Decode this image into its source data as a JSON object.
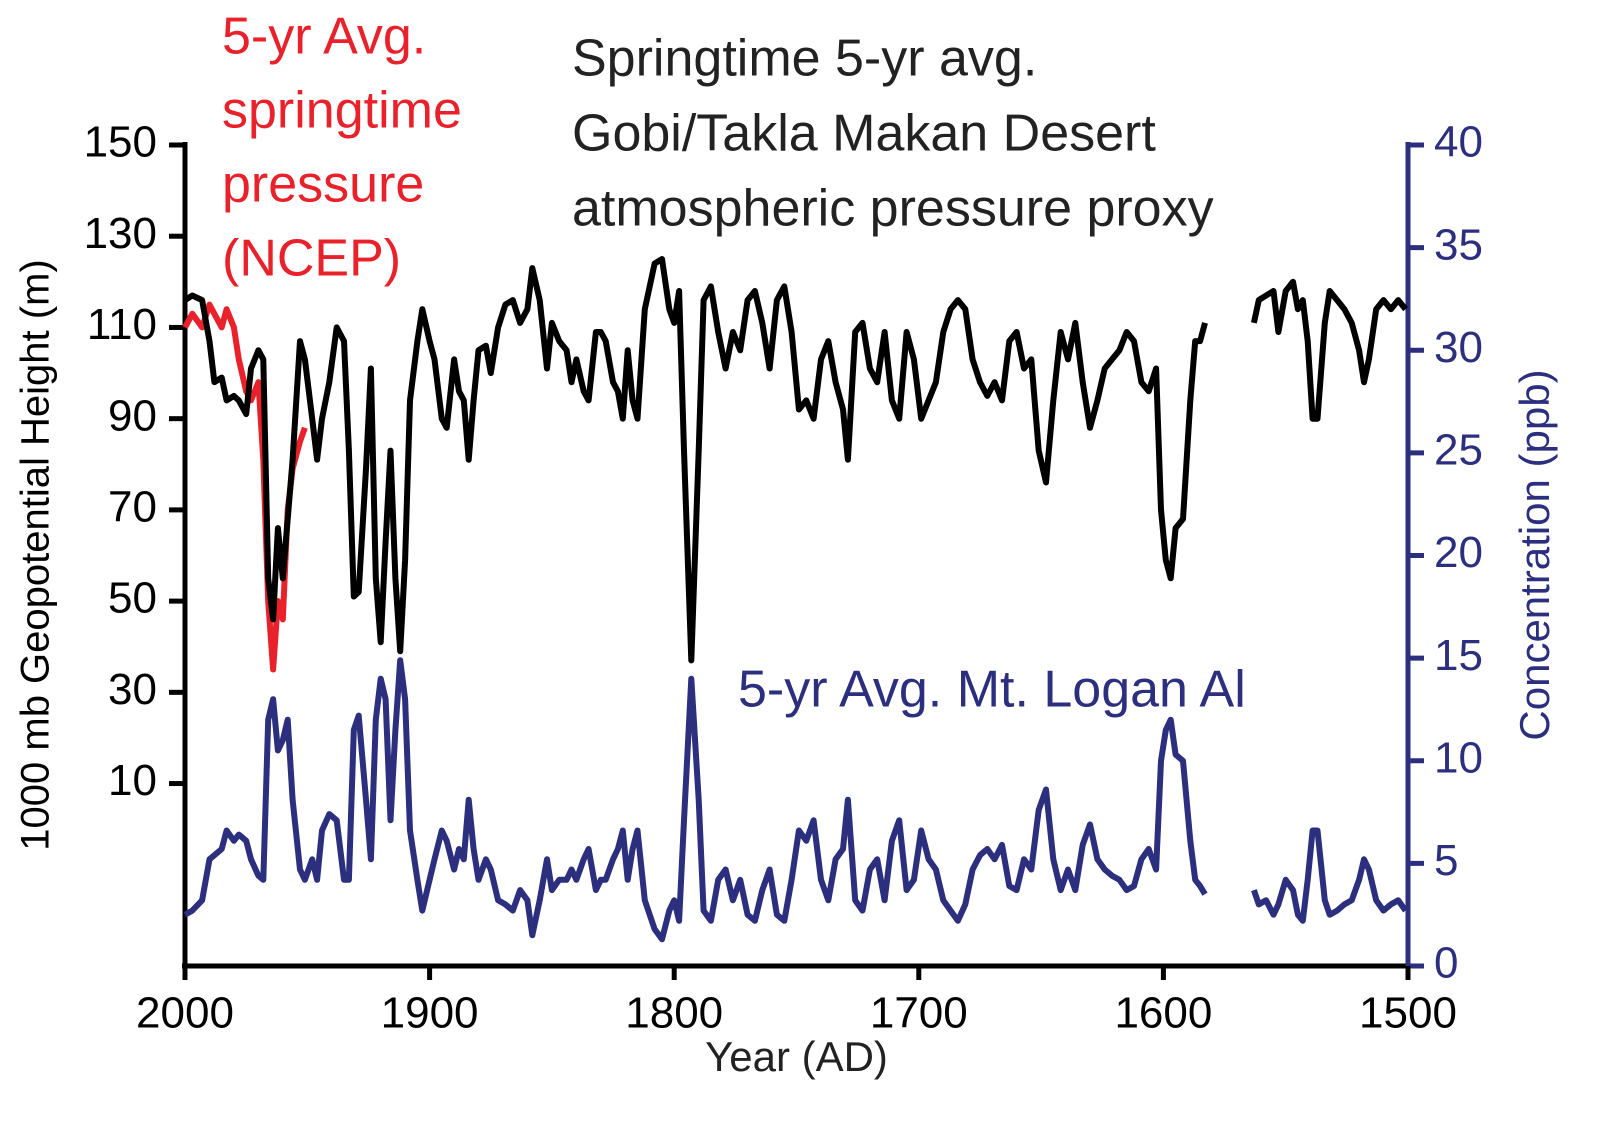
{
  "chart_data": {
    "type": "line",
    "title": [
      "Springtime 5-yr avg.",
      "Gobi/Takla Makan Desert",
      "atmospheric pressure proxy"
    ],
    "xlabel": "Year (AD)",
    "ylabel": "1000 mb Geopotential Height (m)",
    "y2label": "Concentration (ppb)",
    "xlim": [
      2000,
      1500
    ],
    "xticks": [
      2000,
      1900,
      1800,
      1700,
      1600,
      1500
    ],
    "ylim": [
      -30,
      150
    ],
    "yticks": [
      150,
      130,
      110,
      90,
      70,
      50,
      30,
      10
    ],
    "y2lim": [
      0,
      40
    ],
    "y2ticks": [
      40,
      35,
      30,
      25,
      20,
      15,
      10,
      5,
      0
    ],
    "y2color": "#2b2f7e",
    "x": [
      2000,
      1997,
      1993,
      1990,
      1988,
      1985,
      1983,
      1980,
      1978,
      1975,
      1973,
      1970,
      1968,
      1966,
      1964,
      1962,
      1960,
      1958,
      1956,
      1953,
      1951,
      1948,
      1946,
      1944,
      1941,
      1938,
      1935,
      1933,
      1931,
      1929,
      1926,
      1924,
      1922,
      1920,
      1918,
      1916,
      1914,
      1912,
      1910,
      1908,
      1905,
      1903,
      1900,
      1898,
      1895,
      1893,
      1890,
      1888,
      1886,
      1884,
      1882,
      1880,
      1877,
      1875,
      1872,
      1869,
      1866,
      1863,
      1860,
      1858,
      1855,
      1852,
      1850,
      1847,
      1844,
      1842,
      1840,
      1837,
      1835,
      1832,
      1830,
      1828,
      1825,
      1823,
      1821,
      1819,
      1817,
      1815,
      1812,
      1808,
      1805,
      1802,
      1800,
      1798,
      1796,
      1793,
      1790,
      1788,
      1785,
      1782,
      1779,
      1776,
      1773,
      1770,
      1767,
      1764,
      1761,
      1758,
      1755,
      1752,
      1749,
      1746,
      1743,
      1740,
      1737,
      1734,
      1731,
      1729,
      1726,
      1723,
      1720,
      1717,
      1714,
      1711,
      1708,
      1705,
      1702,
      1699,
      1696,
      1693,
      1690,
      1687,
      1684,
      1681,
      1678,
      1675,
      1672,
      1669,
      1666,
      1663,
      1660,
      1657,
      1654,
      1651,
      1648,
      1645,
      1642,
      1639,
      1636,
      1633,
      1630,
      1627,
      1624,
      1621,
      1618,
      1615,
      1612,
      1609,
      1606,
      1603,
      1601,
      1599,
      1597,
      1595,
      1592,
      1589,
      1587,
      1585,
      1583,
      1573,
      1563,
      1561,
      1558,
      1555,
      1553,
      1550,
      1547,
      1545,
      1543,
      1541,
      1539,
      1537,
      1534,
      1532,
      1529,
      1526,
      1523,
      1520,
      1518,
      1516,
      1513,
      1510,
      1507,
      1504,
      1501
    ],
    "series": [
      {
        "color": "#000000",
        "values": [
          116,
          117,
          116,
          107,
          98,
          99,
          94,
          95,
          94,
          91,
          101,
          105,
          103,
          55,
          46,
          66,
          55,
          68,
          81,
          107,
          103,
          90,
          81,
          90,
          98,
          110,
          107,
          83,
          51,
          52,
          79,
          101,
          55,
          41,
          63,
          83,
          55,
          39,
          59,
          94,
          107,
          114,
          107,
          103,
          90,
          88,
          103,
          96,
          94,
          81,
          94,
          105,
          106,
          100,
          110,
          115,
          116,
          111,
          114,
          123,
          116,
          101,
          111,
          107,
          105,
          98,
          103,
          96,
          94,
          109,
          109,
          107,
          98,
          96,
          90,
          105,
          94,
          90,
          114,
          124,
          125,
          114,
          111,
          118,
          83,
          37,
          83,
          116,
          119,
          109,
          101,
          109,
          105,
          116,
          118,
          111,
          101,
          116,
          119,
          109,
          92,
          94,
          90,
          103,
          107,
          98,
          92,
          81,
          109,
          111,
          101,
          98,
          109,
          94,
          90,
          109,
          103,
          90,
          94,
          98,
          109,
          114,
          116,
          114,
          103,
          98,
          95,
          98,
          94,
          107,
          109,
          101,
          103,
          83,
          76,
          94,
          109,
          103,
          111,
          98,
          88,
          94,
          101,
          103,
          105,
          109,
          107,
          98,
          96,
          101,
          70,
          59,
          55,
          66,
          68,
          94,
          107,
          107,
          111,
          null,
          111,
          116,
          117,
          118,
          109,
          118,
          120,
          114,
          116,
          107,
          90,
          90,
          111,
          118,
          116,
          114,
          111,
          105,
          98,
          103,
          114,
          116,
          114,
          116,
          114
        ]
      },
      {
        "name": [
          "5-yr Avg.",
          "springtime",
          "pressure",
          "(NCEP)"
        ],
        "color": "#e8212a",
        "values": [
          110,
          113,
          110,
          115,
          113,
          110,
          114,
          110,
          103,
          96,
          94,
          98,
          81,
          50,
          35,
          50,
          46,
          70,
          79,
          85,
          88,
          null,
          null,
          null,
          null,
          null,
          null,
          null,
          null,
          null,
          null,
          null,
          null,
          null,
          null,
          null,
          null,
          null,
          null,
          null,
          null,
          null,
          null,
          null,
          null,
          null,
          null,
          null,
          null,
          null,
          null,
          null,
          null,
          null,
          null,
          null,
          null,
          null,
          null,
          null,
          null,
          null,
          null,
          null,
          null,
          null,
          null,
          null,
          null,
          null,
          null,
          null,
          null,
          null,
          null,
          null,
          null,
          null,
          null,
          null,
          null,
          null,
          null,
          null,
          null,
          null,
          null,
          null,
          null,
          null,
          null,
          null,
          null,
          null,
          null,
          null,
          null,
          null,
          null,
          null,
          null,
          null,
          null,
          null,
          null,
          null,
          null,
          null,
          null,
          null,
          null,
          null,
          null,
          null,
          null,
          null,
          null,
          null,
          null,
          null,
          null,
          null,
          null,
          null,
          null,
          null,
          null,
          null,
          null,
          null,
          null,
          null,
          null,
          null,
          null,
          null,
          null,
          null,
          null,
          null,
          null,
          null,
          null,
          null,
          null,
          null,
          null,
          null,
          null,
          null,
          null,
          null,
          null,
          null,
          null,
          null,
          null,
          null,
          null,
          null,
          null,
          null,
          null,
          null,
          null,
          null,
          null,
          null,
          null,
          null,
          null,
          null,
          null,
          null,
          null,
          null,
          null,
          null,
          null,
          null,
          null,
          null,
          null,
          null,
          null
        ]
      },
      {
        "name": "5-yr Avg. Mt. Logan Al",
        "color": "#2b2f7e",
        "axis": "y2",
        "values": [
          2.5,
          2.7,
          3.2,
          5.2,
          5.4,
          5.7,
          6.6,
          6.1,
          6.4,
          6.1,
          5.2,
          4.4,
          4.2,
          12.0,
          13.0,
          10.5,
          11.0,
          12.0,
          8.1,
          4.7,
          4.2,
          5.2,
          4.2,
          6.6,
          7.4,
          7.1,
          4.2,
          4.2,
          11.5,
          12.2,
          8.1,
          5.2,
          12.0,
          14.0,
          13.0,
          7.1,
          11.5,
          14.9,
          13.0,
          6.6,
          4.2,
          2.7,
          4.2,
          5.2,
          6.6,
          6.1,
          4.7,
          5.7,
          5.2,
          8.1,
          5.7,
          4.2,
          5.2,
          4.7,
          3.2,
          3.0,
          2.7,
          3.7,
          3.2,
          1.5,
          3.2,
          5.2,
          3.7,
          4.2,
          4.2,
          4.7,
          4.2,
          5.2,
          5.7,
          3.7,
          4.2,
          4.2,
          5.2,
          5.7,
          6.6,
          4.2,
          5.7,
          6.6,
          3.2,
          1.8,
          1.3,
          2.7,
          3.2,
          2.2,
          7.1,
          14.0,
          8.1,
          2.7,
          2.2,
          4.2,
          4.7,
          3.2,
          4.2,
          2.5,
          2.2,
          3.7,
          4.7,
          2.5,
          2.2,
          4.2,
          6.6,
          6.1,
          7.1,
          4.2,
          3.2,
          5.2,
          5.7,
          8.1,
          3.2,
          2.7,
          4.7,
          5.2,
          3.2,
          6.1,
          7.1,
          3.7,
          4.2,
          6.6,
          5.2,
          4.7,
          3.2,
          2.7,
          2.2,
          3.0,
          4.7,
          5.4,
          5.7,
          5.2,
          5.9,
          3.9,
          3.7,
          5.2,
          4.7,
          7.6,
          8.6,
          5.2,
          3.7,
          4.7,
          3.7,
          5.9,
          6.9,
          5.2,
          4.7,
          4.4,
          4.2,
          3.7,
          3.9,
          5.2,
          5.7,
          4.7,
          10.0,
          11.5,
          12.0,
          10.3,
          10.0,
          6.1,
          4.2,
          3.9,
          3.5,
          null,
          3.7,
          3.0,
          3.2,
          2.5,
          3.0,
          4.2,
          3.7,
          2.5,
          2.2,
          4.2,
          6.6,
          6.6,
          3.2,
          2.5,
          2.7,
          3.0,
          3.2,
          4.2,
          5.2,
          4.7,
          3.2,
          2.7,
          3.0,
          3.2,
          2.7
        ]
      }
    ]
  }
}
